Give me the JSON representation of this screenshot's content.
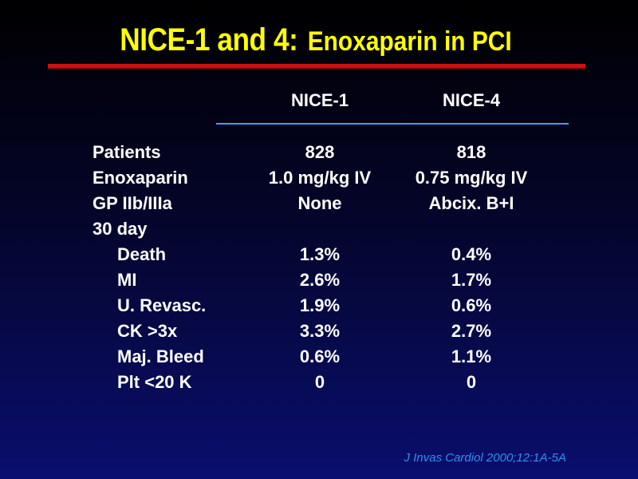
{
  "title": {
    "main": "NICE-1 and 4:",
    "sub": "Enoxaparin in PCI"
  },
  "table": {
    "columns": [
      "NICE-1",
      "NICE-4"
    ],
    "rows": [
      {
        "label": "Patients",
        "values": [
          "828",
          "818"
        ]
      },
      {
        "label": "Enoxaparin",
        "values": [
          "1.0 mg/kg IV",
          "0.75 mg/kg IV"
        ]
      },
      {
        "label": "GP IIb/IIIa",
        "values": [
          "None",
          "Abcix. B+I"
        ]
      },
      {
        "label": "30 day",
        "values": [
          "",
          ""
        ]
      },
      {
        "label": "Death",
        "values": [
          "1.3%",
          "0.4%"
        ]
      },
      {
        "label": "MI",
        "values": [
          "2.6%",
          "1.7%"
        ]
      },
      {
        "label": "U. Revasc.",
        "values": [
          "1.9%",
          "0.6%"
        ]
      },
      {
        "label": "CK >3x",
        "values": [
          "3.3%",
          "2.7%"
        ]
      },
      {
        "label": "Maj. Bleed",
        "values": [
          "0.6%",
          "1.1%"
        ]
      },
      {
        "label": "Plt <20 K",
        "values": [
          "0",
          "0"
        ]
      }
    ]
  },
  "citation": "J Invas Cardiol 2000;12:1A-5A",
  "colors": {
    "title": "#ffff00",
    "rule": "#cc1111",
    "header_rule": "#3aa6e6",
    "citation": "#2f8ff0",
    "text": "#ffffff"
  }
}
